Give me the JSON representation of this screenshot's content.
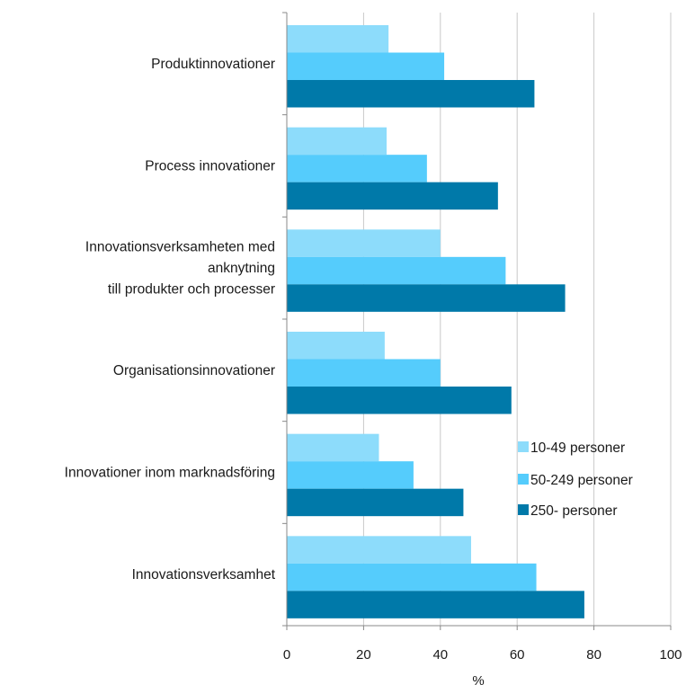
{
  "chart_data": {
    "type": "bar",
    "orientation": "horizontal",
    "categories": [
      [
        "Produktinnovationer"
      ],
      [
        "Process innovationer"
      ],
      [
        "Innovationsverksamheten med",
        "anknytning",
        "till produkter och processer"
      ],
      [
        "Organisationsinnovationer"
      ],
      [
        "Innovationer inom marknadsföring"
      ],
      [
        "Innovationsverksamhet"
      ]
    ],
    "series": [
      {
        "name": "10-49 personer",
        "color": "#8ddcfb",
        "values": [
          26.5,
          26,
          40,
          25.5,
          24,
          48
        ]
      },
      {
        "name": "50-249 personer",
        "color": "#55ccfc",
        "values": [
          41,
          36.5,
          57,
          40,
          33,
          65
        ]
      },
      {
        "name": "250- personer",
        "color": "#0079a9",
        "values": [
          64.5,
          55,
          72.5,
          58.5,
          46,
          77.5
        ]
      }
    ],
    "xlim": [
      0,
      100
    ],
    "xticks": [
      "0",
      "20",
      "40",
      "60",
      "80",
      "100"
    ],
    "xlabel": "%",
    "ylabel": "",
    "title": "",
    "grid": "vertical",
    "legend_position": "right"
  }
}
